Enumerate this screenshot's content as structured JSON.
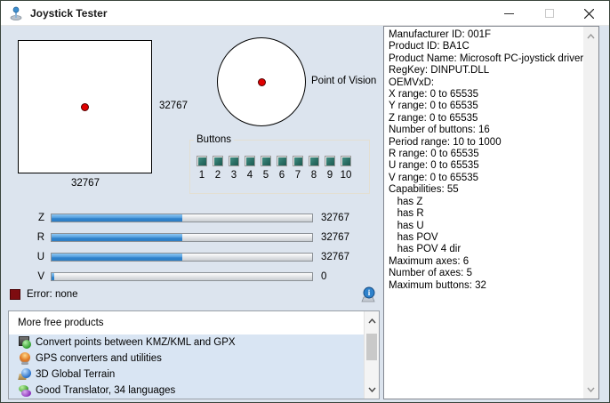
{
  "window": {
    "title": "Joystick Tester"
  },
  "xy_field": {
    "x_max_label": "32767",
    "y_max_label": "32767"
  },
  "pov": {
    "label": "Point of Vision"
  },
  "buttons": {
    "group_label": "Buttons",
    "items": [
      "1",
      "2",
      "3",
      "4",
      "5",
      "6",
      "7",
      "8",
      "9",
      "10"
    ]
  },
  "bars": {
    "items": [
      {
        "label": "Z",
        "value": "32767",
        "fill_pct": 50
      },
      {
        "label": "R",
        "value": "32767",
        "fill_pct": 50
      },
      {
        "label": "U",
        "value": "32767",
        "fill_pct": 50
      },
      {
        "label": "V",
        "value": "0",
        "fill_pct": 1
      }
    ]
  },
  "error": {
    "label": "Error: none"
  },
  "products": {
    "header": "More free products",
    "items": [
      {
        "icon": "kmz-gpx-converter-icon",
        "label": "Convert points between KMZ/KML and GPX"
      },
      {
        "icon": "gps-globe-icon",
        "label": "GPS converters and utilities"
      },
      {
        "icon": "terrain-globe-icon",
        "label": "3D Global Terrain"
      },
      {
        "icon": "translator-bubbles-icon",
        "label": "Good Translator, 34 languages"
      }
    ]
  },
  "info_panel": {
    "lines": [
      "Manufacturer ID: 001F",
      "Product ID: BA1C",
      "Product Name: Microsoft PC-joystick driver",
      "RegKey: DINPUT.DLL",
      "OEMVxD:",
      "X range: 0 to 65535",
      "Y range: 0 to 65535",
      "Z range: 0 to 65535",
      "Number of buttons: 16",
      "Period range: 10 to 1000",
      "R range: 0 to 65535",
      "U range: 0 to 65535",
      "V range: 0 to 65535",
      "Capabilities: 55",
      "   has Z",
      "   has R",
      "   has U",
      "   has POV",
      "   has POV 4 dir",
      "Maximum axes: 6",
      "Number of axes: 5",
      "Maximum buttons: 32"
    ]
  },
  "colors": {
    "accent_blue": "#2f82cb",
    "button_teal": "#2a6f65",
    "error_maroon": "#7e0c10",
    "client_bg": "#dce4ee"
  }
}
